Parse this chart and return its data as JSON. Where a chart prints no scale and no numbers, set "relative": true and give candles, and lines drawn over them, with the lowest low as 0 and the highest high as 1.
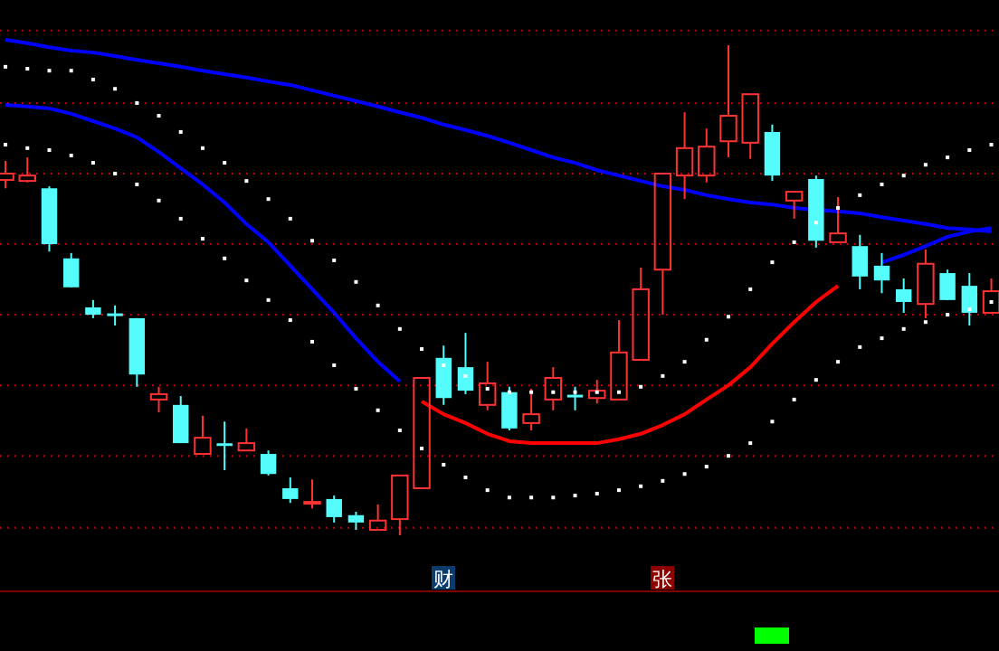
{
  "chart_data": {
    "type": "candlestick",
    "relative": true,
    "ref_lines": [
      {
        "axis": "y",
        "value": 1.03,
        "color": "#c00000",
        "line_style": "dotted"
      },
      {
        "axis": "y",
        "value": 0.882,
        "color": "#c00000",
        "line_style": "dotted"
      },
      {
        "axis": "y",
        "value": 0.738,
        "color": "#c00000",
        "line_style": "dotted"
      },
      {
        "axis": "y",
        "value": 0.594,
        "color": "#c00000",
        "line_style": "dotted"
      },
      {
        "axis": "y",
        "value": 0.45,
        "color": "#c00000",
        "line_style": "dotted"
      },
      {
        "axis": "y",
        "value": 0.306,
        "color": "#c00000",
        "line_style": "dotted"
      },
      {
        "axis": "y",
        "value": 0.162,
        "color": "#c00000",
        "line_style": "dotted"
      },
      {
        "axis": "y",
        "value": 0.015,
        "color": "#c00000",
        "line_style": "dotted"
      }
    ],
    "categories": [
      null,
      null,
      null,
      null,
      null,
      null,
      null,
      null,
      null,
      null,
      null,
      null,
      null,
      null,
      null,
      null,
      null,
      null,
      null,
      null,
      null,
      null,
      null,
      null,
      null,
      null,
      null,
      null,
      null,
      null,
      null,
      null,
      null,
      null,
      null,
      null,
      null,
      null,
      null,
      null,
      null,
      null,
      null,
      null,
      null,
      null
    ],
    "ohlc": [
      [
        0.725,
        0.764,
        0.708,
        0.738
      ],
      [
        0.723,
        0.771,
        0.72,
        0.734
      ],
      [
        0.708,
        0.712,
        0.579,
        0.594
      ],
      [
        0.565,
        0.576,
        0.506,
        0.506
      ],
      [
        0.465,
        0.48,
        0.443,
        0.45
      ],
      [
        0.45,
        0.469,
        0.428,
        0.45
      ],
      [
        0.443,
        0.443,
        0.303,
        0.328
      ],
      [
        0.277,
        0.303,
        0.251,
        0.288
      ],
      [
        0.266,
        0.284,
        0.188,
        0.188
      ],
      [
        0.166,
        0.244,
        0.166,
        0.199
      ],
      [
        0.185,
        0.232,
        0.133,
        0.185
      ],
      [
        0.173,
        0.218,
        0.173,
        0.188
      ],
      [
        0.166,
        0.173,
        0.122,
        0.125
      ],
      [
        0.096,
        0.118,
        0.066,
        0.074
      ],
      [
        0.065,
        0.114,
        0.055,
        0.068
      ],
      [
        0.074,
        0.081,
        0.026,
        0.037
      ],
      [
        0.041,
        0.048,
        0.011,
        0.026
      ],
      [
        0.011,
        0.063,
        0.011,
        0.03
      ],
      [
        0.033,
        0.122,
        0,
        0.122
      ],
      [
        0.096,
        0.321,
        0.096,
        0.321
      ],
      [
        0.362,
        0.387,
        0.266,
        0.28
      ],
      [
        0.343,
        0.413,
        0.288,
        0.295
      ],
      [
        0.266,
        0.354,
        0.255,
        0.31
      ],
      [
        0.292,
        0.303,
        0.214,
        0.218
      ],
      [
        0.229,
        0.299,
        0.214,
        0.247
      ],
      [
        0.277,
        0.343,
        0.255,
        0.321
      ],
      [
        0.284,
        0.303,
        0.255,
        0.284
      ],
      [
        0.28,
        0.317,
        0.269,
        0.295
      ],
      [
        0.277,
        0.439,
        0.277,
        0.373
      ],
      [
        0.358,
        0.546,
        0.358,
        0.502
      ],
      [
        0.542,
        0.738,
        0.45,
        0.738
      ],
      [
        0.734,
        0.863,
        0.686,
        0.79
      ],
      [
        0.734,
        0.83,
        0.72,
        0.793
      ],
      [
        0.804,
        1.0,
        0.771,
        0.856
      ],
      [
        0.801,
        0.9,
        0.768,
        0.9
      ],
      [
        0.823,
        0.838,
        0.723,
        0.734
      ],
      [
        0.683,
        0.701,
        0.646,
        0.701
      ],
      [
        0.727,
        0.734,
        0.587,
        0.601
      ],
      [
        0.598,
        0.69,
        0.598,
        0.616
      ],
      [
        0.59,
        0.613,
        0.502,
        0.528
      ],
      [
        0.55,
        0.576,
        0.494,
        0.52
      ],
      [
        0.502,
        0.524,
        0.454,
        0.476
      ],
      [
        0.472,
        0.583,
        0.443,
        0.554
      ],
      [
        0.535,
        0.542,
        0.48,
        0.48
      ],
      [
        0.509,
        0.535,
        0.428,
        0.454
      ],
      [
        0.454,
        0.524,
        0.454,
        0.498
      ]
    ],
    "colors": [
      "#ff3232",
      "#ff3232",
      "#54fcfc",
      "#54fcfc",
      "#54fcfc",
      "#54fcfc",
      "#54fcfc",
      "#ff3232",
      "#54fcfc",
      "#ff3232",
      "#54fcfc",
      "#ff3232",
      "#54fcfc",
      "#54fcfc",
      "#ff3232",
      "#54fcfc",
      "#54fcfc",
      "#ff3232",
      "#ff3232",
      "#ff3232",
      "#54fcfc",
      "#54fcfc",
      "#ff3232",
      "#54fcfc",
      "#ff3232",
      "#ff3232",
      "#54fcfc",
      "#ff3232",
      "#ff3232",
      "#ff3232",
      "#ff3232",
      "#ff3232",
      "#ff3232",
      "#ff3232",
      "#ff3232",
      "#54fcfc",
      "#ff3232",
      "#54fcfc",
      "#ff3232",
      "#54fcfc",
      "#54fcfc",
      "#54fcfc",
      "#ff3232",
      "#54fcfc",
      "#54fcfc",
      "#ff3232"
    ],
    "series": [
      {
        "type": "line",
        "color": "#0000ff",
        "values": [
          1.011,
          1.004,
          0.996,
          0.989,
          0.985,
          0.978,
          0.97,
          0.963,
          0.956,
          0.948,
          0.941,
          0.934,
          0.926,
          0.919,
          0.908,
          0.897,
          0.886,
          0.875,
          0.863,
          0.852,
          0.838,
          0.827,
          0.815,
          0.801,
          0.786,
          0.771,
          0.76,
          0.745,
          0.734,
          0.723,
          0.712,
          0.705,
          0.694,
          0.686,
          0.679,
          0.675,
          0.668,
          0.664,
          0.661,
          0.657,
          0.649,
          0.642,
          0.635,
          0.627,
          0.624,
          0.62
        ]
      },
      {
        "type": "line",
        "color": "#0000ff",
        "values": [
          0.878,
          0.875,
          0.871,
          0.86,
          0.845,
          0.83,
          0.812,
          0.782,
          0.749,
          0.716,
          0.679,
          0.635,
          0.598,
          0.55,
          0.502,
          0.454,
          0.402,
          0.354,
          0.314,
          null,
          null,
          null,
          null,
          null,
          null,
          null,
          null,
          null,
          null,
          null,
          null,
          null,
          null,
          null,
          null,
          null,
          null,
          null,
          null,
          null,
          0.557,
          0.572,
          0.59,
          0.609,
          0.62,
          0.627
        ]
      },
      {
        "type": "line",
        "color": "#ff0000",
        "values": [
          null,
          null,
          null,
          null,
          null,
          null,
          null,
          null,
          null,
          null,
          null,
          null,
          null,
          null,
          null,
          null,
          null,
          null,
          null,
          0.273,
          0.247,
          0.229,
          0.207,
          0.192,
          0.188,
          0.188,
          0.188,
          0.188,
          0.196,
          0.207,
          0.225,
          0.247,
          0.277,
          0.306,
          0.343,
          0.391,
          0.435,
          0.476,
          0.509,
          null,
          null,
          null,
          null,
          null,
          null,
          null
        ]
      },
      {
        "type": "scatter",
        "color": "#ffffff",
        "marker": "square",
        "values": [
          0.956,
          0.952,
          0.948,
          0.948,
          0.93,
          0.911,
          0.882,
          0.856,
          0.823,
          0.79,
          0.76,
          0.723,
          0.686,
          0.646,
          0.601,
          0.561,
          0.517,
          0.469,
          0.421,
          0.38,
          0.347,
          0.325,
          0.299,
          0.292,
          0.292,
          0.292,
          0.292,
          0.292,
          0.292,
          0.303,
          0.325,
          0.354,
          0.399,
          0.446,
          0.502,
          0.557,
          0.598,
          0.638,
          0.668,
          0.694,
          0.716,
          0.734,
          0.756,
          0.771,
          0.786,
          0.797
        ]
      },
      {
        "type": "scatter",
        "color": "#ffffff",
        "marker": "square",
        "values": [
          0.797,
          0.79,
          0.786,
          0.775,
          0.76,
          0.738,
          0.716,
          0.683,
          0.646,
          0.605,
          0.565,
          0.52,
          0.48,
          0.439,
          0.395,
          0.347,
          0.299,
          0.255,
          0.214,
          0.177,
          0.144,
          0.118,
          0.092,
          0.077,
          0.077,
          0.077,
          0.081,
          0.085,
          0.092,
          0.1,
          0.111,
          0.125,
          0.14,
          0.162,
          0.188,
          0.232,
          0.277,
          0.317,
          0.354,
          0.384,
          0.402,
          0.421,
          0.435,
          0.45,
          0.461,
          0.476
        ]
      }
    ],
    "annotations": [
      "财",
      "张"
    ]
  }
}
